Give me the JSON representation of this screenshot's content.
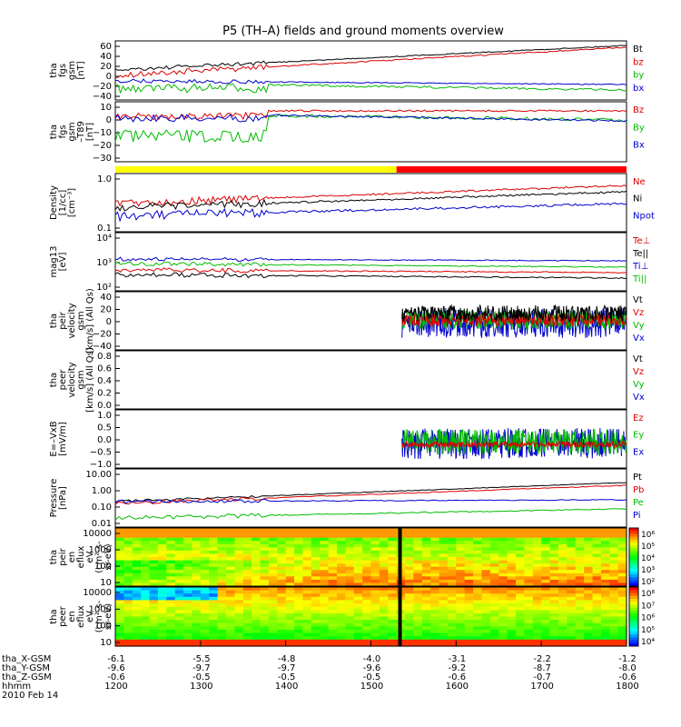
{
  "title": "P5 (TH–A) fields and ground moments overview",
  "bottom": {
    "labels": [
      "tha_X-GSM",
      "tha_Y-GSM",
      "tha_Z-GSM",
      "hhmm",
      "2010 Feb 14"
    ],
    "columns": [
      {
        "x": "-6.1",
        "y": "-9.6",
        "z": "-0.6",
        "t": "1200"
      },
      {
        "x": "-5.5",
        "y": "-9.7",
        "z": "-0.5",
        "t": "1300"
      },
      {
        "x": "-4.8",
        "y": "-9.7",
        "z": "-0.5",
        "t": "1400"
      },
      {
        "x": "-4.0",
        "y": "-9.6",
        "z": "-0.5",
        "t": "1500"
      },
      {
        "x": "-3.1",
        "y": "-9.2",
        "z": "-0.6",
        "t": "1600"
      },
      {
        "x": "-2.2",
        "y": "-8.7",
        "z": "-0.7",
        "t": "1700"
      },
      {
        "x": "-1.2",
        "y": "-8.0",
        "z": "-0.6",
        "t": "1800"
      }
    ]
  },
  "chart_data": [
    {
      "id": "fgs_gsm",
      "type": "line",
      "ylabel": [
        "tha",
        "fgs",
        "gsm",
        "[nT]"
      ],
      "yticks": [
        "60",
        "40",
        "20",
        "0",
        "−20",
        "−40"
      ],
      "series": [
        {
          "name": "Bt",
          "color": "#000000",
          "start": [
            18,
            20,
            24,
            52
          ],
          "end": [
            22,
            20,
            33,
            58
          ]
        },
        {
          "name": "bz",
          "color": "#dd0000",
          "start": [
            10,
            12,
            24,
            50
          ],
          "end": [
            14,
            16,
            33,
            56
          ]
        },
        {
          "name": "by",
          "color": "#00bb00",
          "start": [
            -4,
            -18,
            -8,
            -20
          ],
          "end": [
            -6,
            -20,
            -10,
            -24
          ]
        },
        {
          "name": "bx",
          "color": "#0000cc",
          "start": [
            -2,
            -6,
            -6,
            -4
          ],
          "end": [
            -3,
            -5,
            -6,
            -5
          ]
        }
      ]
    },
    {
      "id": "fgs_gsm_t89",
      "type": "line",
      "ylabel": [
        "tha",
        "fgs",
        "gsm",
        "–T89",
        "[nT]"
      ],
      "yticks": [
        "10",
        "0",
        "−10",
        "−20",
        "−30"
      ],
      "series": [
        {
          "name": "Bz",
          "color": "#dd0000",
          "labels_in_legend": true
        },
        {
          "name": "By",
          "color": "#00bb00"
        },
        {
          "name": "Bx",
          "color": "#0000cc"
        }
      ]
    },
    {
      "id": "density",
      "type": "line",
      "ylabel": [
        "Density",
        "[1/cc]",
        "[cm⁻³]"
      ],
      "yticks": [
        "1.0",
        "0.1"
      ],
      "series": [
        {
          "name": "Ne",
          "color": "#dd0000"
        },
        {
          "name": "Ni",
          "color": "#000000"
        },
        {
          "name": "Npot",
          "color": "#0000cc"
        }
      ]
    },
    {
      "id": "temperature",
      "type": "line",
      "ylabel": [
        "mag13",
        "[eV]"
      ],
      "yticks": [
        "10⁴",
        "10³",
        "10²"
      ],
      "series": [
        {
          "name": "Te⊥",
          "color": "#dd0000"
        },
        {
          "name": "Te||",
          "color": "#000000"
        },
        {
          "name": "Ti⊥",
          "color": "#0000cc"
        },
        {
          "name": "Ti||",
          "color": "#00bb00"
        }
      ]
    },
    {
      "id": "peir_velocity",
      "type": "line",
      "ylabel": [
        "tha",
        "peir",
        "velocity",
        "gsm",
        "[km/s] (All Qs)"
      ],
      "yticks": [
        "40",
        "20",
        "0",
        "−20",
        "−40"
      ],
      "series": [
        {
          "name": "Vt",
          "color": "#000000"
        },
        {
          "name": "Vz",
          "color": "#dd0000"
        },
        {
          "name": "Vy",
          "color": "#00bb00"
        },
        {
          "name": "Vx",
          "color": "#0000cc"
        }
      ]
    },
    {
      "id": "peer_velocity",
      "type": "line",
      "ylabel": [
        "tha",
        "peer",
        "velocity",
        "gsm",
        "[km/s] (All Qs)"
      ],
      "yticks": [
        "0.8",
        "0.6",
        "0.4",
        "0.2",
        "0.0"
      ],
      "series": [
        {
          "name": "Vt",
          "color": "#000000"
        },
        {
          "name": "Vz",
          "color": "#dd0000"
        },
        {
          "name": "Vy",
          "color": "#00bb00"
        },
        {
          "name": "Vx",
          "color": "#0000cc"
        }
      ]
    },
    {
      "id": "efield",
      "type": "line",
      "ylabel": [
        "E=–VxB",
        "[mV/m]"
      ],
      "yticks": [
        "1.0",
        "0.5",
        "0.0",
        "−0.5",
        "−1.0"
      ],
      "series": [
        {
          "name": "Ez",
          "color": "#dd0000"
        },
        {
          "name": "Ey",
          "color": "#00bb00"
        },
        {
          "name": "Ex",
          "color": "#0000cc"
        }
      ]
    },
    {
      "id": "pressure",
      "type": "line",
      "ylabel": [
        "Pressure",
        "[nPa]"
      ],
      "yticks": [
        "10.00",
        "1.00",
        "0.10",
        "0.01"
      ],
      "series": [
        {
          "name": "Pt",
          "color": "#000000"
        },
        {
          "name": "Pb",
          "color": "#dd0000"
        },
        {
          "name": "Pe",
          "color": "#00bb00"
        },
        {
          "name": "Pi",
          "color": "#0000cc"
        }
      ]
    },
    {
      "id": "peir_spec",
      "type": "heatmap",
      "ylabel": [
        "tha",
        "peir",
        "en",
        "eflux",
        "eV",
        "(cm²-s-",
        "sr-eV)"
      ],
      "yticks": [
        "10000",
        "1000",
        "100",
        "10"
      ],
      "colorbar": [
        "10⁶",
        "10⁵",
        "10⁴",
        "10³",
        "10²"
      ]
    },
    {
      "id": "peer_spec",
      "type": "heatmap",
      "ylabel": [
        "tha",
        "peer",
        "en",
        "eflux",
        "eV",
        "(cm²-s-",
        "sr-eV)"
      ],
      "yticks": [
        "10000",
        "1000",
        "100",
        "10"
      ],
      "colorbar": [
        "10⁸",
        "10⁷",
        "10⁶",
        "10⁵",
        "10⁴"
      ]
    }
  ]
}
